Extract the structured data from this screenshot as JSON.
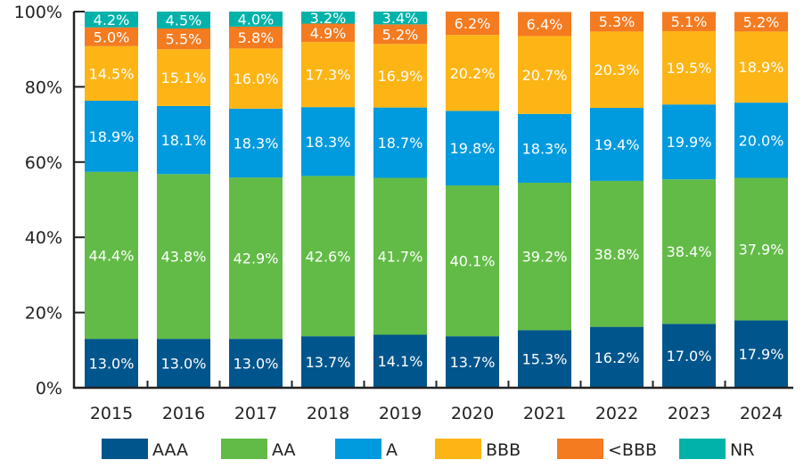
{
  "chart_data": {
    "type": "bar",
    "stacked": true,
    "categories": [
      "2015",
      "2016",
      "2017",
      "2018",
      "2019",
      "2020",
      "2021",
      "2022",
      "2023",
      "2024"
    ],
    "series": [
      {
        "name": "AAA",
        "color": "#00558C",
        "values": [
          13.0,
          13.0,
          13.0,
          13.7,
          14.1,
          13.7,
          15.3,
          16.2,
          17.0,
          17.9
        ]
      },
      {
        "name": "AA",
        "color": "#62BB46",
        "values": [
          44.4,
          43.8,
          42.9,
          42.6,
          41.7,
          40.1,
          39.2,
          38.8,
          38.4,
          37.9
        ]
      },
      {
        "name": "A",
        "color": "#009ADE",
        "values": [
          18.9,
          18.1,
          18.3,
          18.3,
          18.7,
          19.8,
          18.3,
          19.4,
          19.9,
          20.0
        ]
      },
      {
        "name": "BBB",
        "color": "#FDB515",
        "values": [
          14.5,
          15.1,
          16.0,
          17.3,
          16.9,
          20.2,
          20.7,
          20.3,
          19.5,
          18.9
        ]
      },
      {
        "name": "<BBB",
        "color": "#F47B20",
        "values": [
          5.0,
          5.5,
          5.8,
          4.9,
          5.2,
          6.2,
          6.4,
          5.3,
          5.1,
          5.2
        ]
      },
      {
        "name": "NR",
        "color": "#00B2A9",
        "values": [
          4.2,
          4.5,
          4.0,
          3.2,
          3.4,
          null,
          null,
          null,
          null,
          null
        ]
      }
    ],
    "yticks": [
      "0%",
      "20%",
      "40%",
      "60%",
      "80%",
      "100%"
    ],
    "ylim": [
      0,
      100
    ],
    "legend_placement": "bottom",
    "grid": false
  }
}
